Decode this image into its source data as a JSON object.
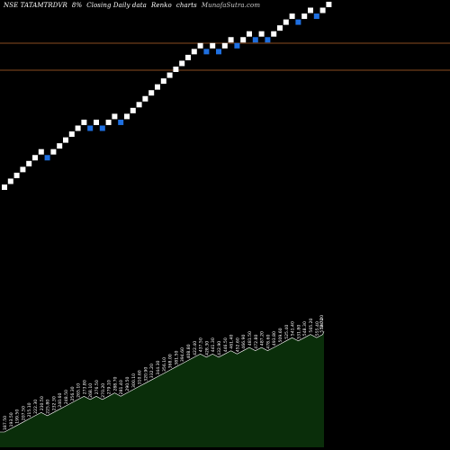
{
  "header": {
    "symbol": "NSE TATAMTRDVR",
    "box_size": "8%",
    "description": "Closing Daily data",
    "chart_type": "Renko",
    "charts_word": "charts",
    "site": "MunafaSutra.com"
  },
  "colors": {
    "background": "#000000",
    "up_brick": "#ffffff",
    "down_brick": "#1e6fe0",
    "reference_line": "#b8652a",
    "volume_fill": "#0a2e0a",
    "volume_line": "#ffffff"
  },
  "chart_data": {
    "type": "renko",
    "directions": [
      "u",
      "u",
      "u",
      "u",
      "u",
      "u",
      "u",
      "d",
      "u",
      "u",
      "u",
      "u",
      "u",
      "u",
      "d",
      "u",
      "d",
      "u",
      "u",
      "d",
      "u",
      "u",
      "u",
      "u",
      "u",
      "u",
      "u",
      "u",
      "u",
      "u",
      "u",
      "u",
      "u",
      "d",
      "u",
      "d",
      "u",
      "u",
      "d",
      "u",
      "u",
      "d",
      "u",
      "d",
      "u",
      "u",
      "u",
      "u",
      "d",
      "u",
      "u",
      "d",
      "u",
      "u"
    ],
    "reference_lines": [
      "upper",
      "lower"
    ],
    "brick_prices": [
      "187.50",
      "193.50",
      "199.50",
      "207.50",
      "215.10",
      "222.30",
      "230.50",
      "225.80",
      "232.30",
      "240.60",
      "248.50",
      "256.30",
      "265.10",
      "273.80",
      "268.10",
      "276.50",
      "270.20",
      "279.10",
      "288.70",
      "281.40",
      "290.50",
      "300.10",
      "310.60",
      "320.90",
      "332.20",
      "344.30",
      "356.10",
      "368.00",
      "381.50",
      "394.60",
      "408.80",
      "422.40",
      "437.50",
      "428.30",
      "441.30",
      "432.90",
      "446.50",
      "461.40",
      "452.60",
      "466.90",
      "481.50",
      "472.80",
      "487.20",
      "478.60",
      "493.80",
      "509.60",
      "525.40",
      "541.40",
      "531.80",
      "548.30",
      "565.20",
      "555.40",
      "572.70",
      "590.20"
    ],
    "volume_profile": "area"
  }
}
